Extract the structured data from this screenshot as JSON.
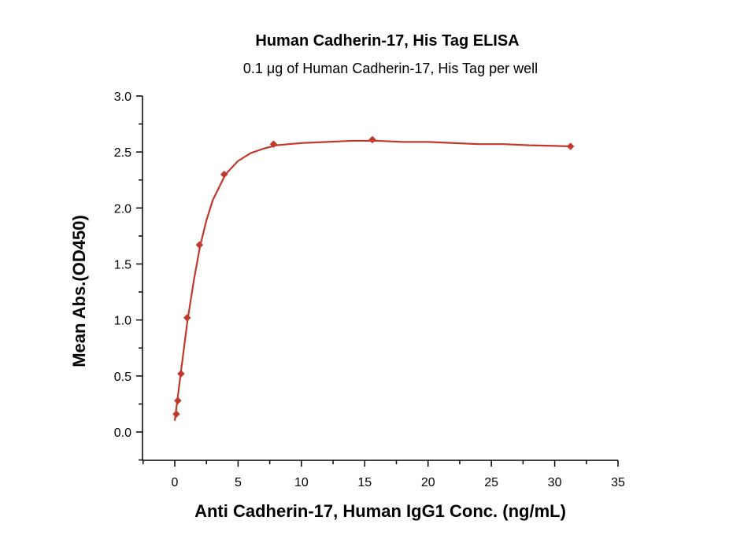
{
  "chart_data": {
    "type": "scatter",
    "title": "Human Cadherin-17, His Tag ELISA",
    "subtitle": "0.1 μg of Human Cadherin-17, His Tag per well",
    "xlabel": "Anti Cadherin-17, Human IgG1 Conc. (ng/mL)",
    "ylabel": "Mean Abs.(OD450)",
    "xlim": [
      -2.5,
      35
    ],
    "ylim": [
      -0.25,
      3.0
    ],
    "xticks": [
      0,
      5,
      10,
      15,
      20,
      25,
      30,
      35
    ],
    "xtick_labels": [
      "0",
      "5",
      "10",
      "15",
      "20",
      "25",
      "30",
      "35"
    ],
    "yticks": [
      0.0,
      0.5,
      1.0,
      1.5,
      2.0,
      2.5,
      3.0
    ],
    "ytick_labels": [
      "0.0",
      "0.5",
      "1.0",
      "1.5",
      "2.0",
      "2.5",
      "3.0"
    ],
    "grid": false,
    "colors": {
      "series": "#c0392b",
      "axis": "#000000"
    },
    "series": [
      {
        "marker": "diamond",
        "x": [
          0.12,
          0.24,
          0.49,
          0.98,
          1.95,
          3.9,
          7.8,
          15.6,
          31.25
        ],
        "y": [
          0.16,
          0.28,
          0.52,
          1.02,
          1.67,
          2.3,
          2.57,
          2.61,
          2.55
        ]
      }
    ],
    "fit_curve": {
      "x": [
        0,
        0.5,
        1,
        1.5,
        2,
        2.5,
        3,
        4,
        5,
        6,
        7,
        8,
        9,
        10,
        12,
        14,
        16,
        18,
        20,
        22,
        24,
        26,
        28,
        30,
        31.25
      ],
      "y": [
        0.1,
        0.55,
        0.99,
        1.35,
        1.66,
        1.89,
        2.07,
        2.3,
        2.42,
        2.49,
        2.53,
        2.56,
        2.57,
        2.58,
        2.59,
        2.6,
        2.6,
        2.59,
        2.59,
        2.58,
        2.57,
        2.57,
        2.56,
        2.555,
        2.55
      ]
    }
  }
}
